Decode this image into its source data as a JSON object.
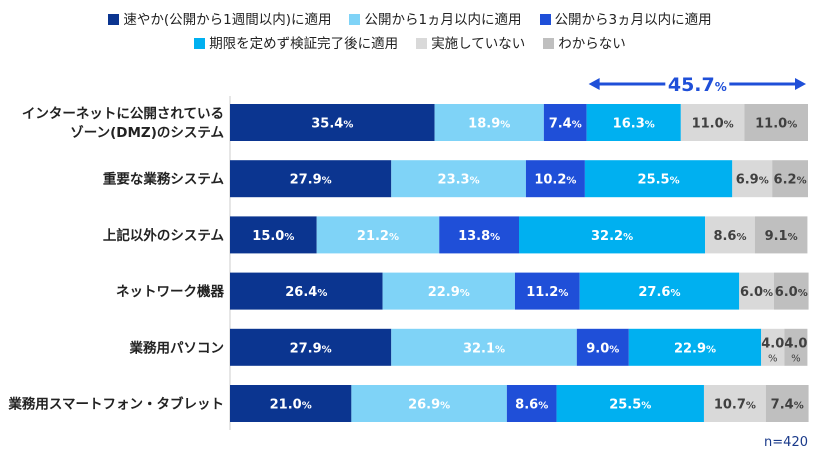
{
  "chart_data": {
    "type": "bar",
    "stacked": true,
    "orientation": "horizontal",
    "percent": true,
    "xlim": [
      0,
      100
    ],
    "categories": [
      [
        "インターネットに公開されている",
        "ゾーン(DMZ)のシステム"
      ],
      [
        "重要な業務システム"
      ],
      [
        "上記以外のシステム"
      ],
      [
        "ネットワーク機器"
      ],
      [
        "業務用パソコン"
      ],
      [
        "業務用スマートフォン・タブレット"
      ]
    ],
    "series": [
      {
        "name": "速やか(公開から1週間以内)に適用",
        "color": "#0b3590",
        "label_color": "#ffffff",
        "values": [
          35.4,
          27.9,
          15.0,
          26.4,
          27.9,
          21.0
        ]
      },
      {
        "name": "公開から1ヵ月以内に適用",
        "color": "#7fd3f7",
        "label_color": "#ffffff",
        "values": [
          18.9,
          23.3,
          21.2,
          22.9,
          32.1,
          26.9
        ]
      },
      {
        "name": "公開から3ヵ月以内に適用",
        "color": "#1f4fd8",
        "label_color": "#ffffff",
        "values": [
          7.4,
          10.2,
          13.8,
          11.2,
          9.0,
          8.6
        ]
      },
      {
        "name": "期限を定めず検証完了後に適用",
        "color": "#00b0f0",
        "label_color": "#ffffff",
        "values": [
          16.3,
          25.5,
          32.2,
          27.6,
          22.9,
          25.5
        ]
      },
      {
        "name": "実施していない",
        "color": "#d9d9d9",
        "label_color": "#404040",
        "values": [
          11.0,
          6.9,
          8.6,
          6.0,
          4.0,
          10.7
        ]
      },
      {
        "name": "わからない",
        "color": "#bfbfbf",
        "label_color": "#404040",
        "values": [
          11.0,
          6.2,
          9.1,
          6.0,
          4.0,
          7.4
        ]
      }
    ],
    "annotation": {
      "text": "45.7",
      "unit": "%",
      "color": "#1f4fd8"
    },
    "note": "n=420",
    "unit": "%"
  }
}
